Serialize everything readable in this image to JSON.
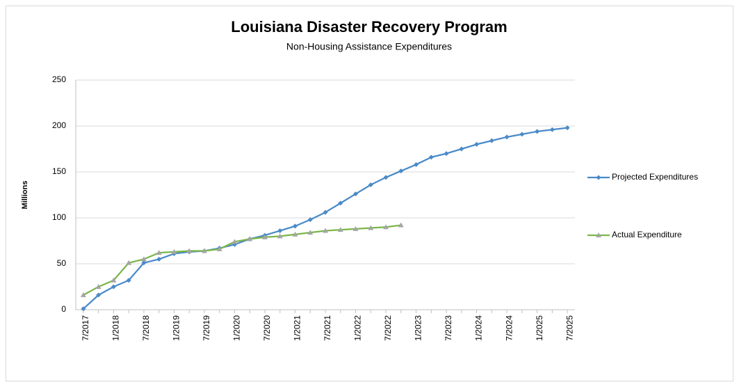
{
  "chart_data": {
    "type": "line",
    "title": "Louisiana Disaster Recovery Program",
    "subtitle": "Non-Housing Assistance Expenditures",
    "y_label": "Millions",
    "categories": [
      "7/2017",
      null,
      "1/2018",
      null,
      "7/2018",
      null,
      "1/2019",
      null,
      "7/2019",
      null,
      "1/2020",
      null,
      "7/2020",
      null,
      "1/2021",
      null,
      "7/2021",
      null,
      "1/2022",
      null,
      "7/2022",
      null,
      "1/2023",
      null,
      "7/2023",
      null,
      "1/2024",
      null,
      "7/2024",
      null,
      "1/2025",
      null,
      "7/2025"
    ],
    "series": [
      {
        "name": "Projected Expenditures",
        "color": "#4a8ac8",
        "marker": "diamond",
        "marker_color": "#4a8ac8",
        "values": [
          1,
          16,
          25,
          32,
          51,
          55,
          61,
          63,
          64,
          67,
          71,
          77,
          81,
          86,
          91,
          98,
          106,
          116,
          126,
          136,
          144,
          151,
          158,
          166,
          170,
          175,
          180,
          184,
          188,
          191,
          194,
          196,
          198
        ]
      },
      {
        "name": "Actual Expenditure",
        "color": "#7ab648",
        "marker": "triangle",
        "marker_color": "#a5a5a5",
        "values": [
          16,
          25,
          32,
          51,
          55,
          62,
          63,
          64,
          64,
          66,
          74,
          77,
          79,
          80,
          82,
          84,
          86,
          87,
          88,
          89,
          90,
          92,
          null,
          null,
          null,
          null,
          null,
          null,
          null,
          null,
          null,
          null,
          null
        ]
      }
    ],
    "ylim": [
      0,
      250
    ],
    "yticks": [
      0,
      50,
      100,
      150,
      200,
      250
    ],
    "grid": true,
    "legend": "right"
  }
}
